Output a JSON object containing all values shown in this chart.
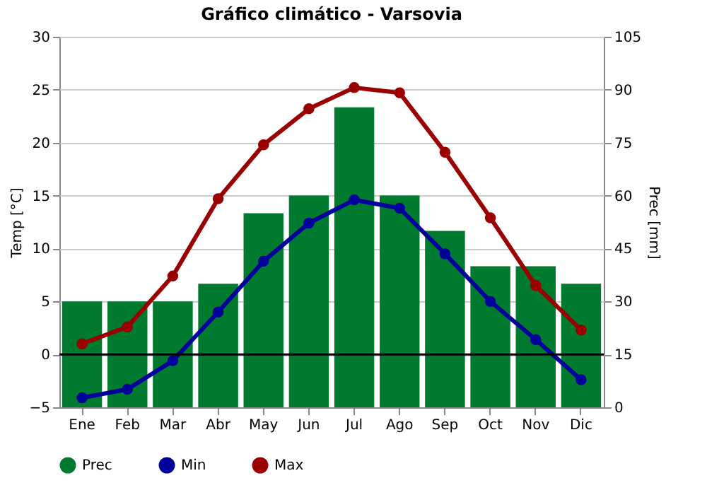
{
  "chart_data": {
    "type": "line",
    "title": "Gráfico climático - Varsovia",
    "ylabel": "Temp [°C]",
    "y2label": "Prec [mm]",
    "categories": [
      "Ene",
      "Feb",
      "Mar",
      "Abr",
      "May",
      "Jun",
      "Jul",
      "Ago",
      "Sep",
      "Oct",
      "Nov",
      "Dic"
    ],
    "series": [
      {
        "name": "Prec",
        "type": "bar",
        "axis": "y2",
        "color": "#007a2f",
        "values": [
          30,
          30,
          30,
          35,
          55,
          60,
          85,
          60,
          50,
          40,
          40,
          35
        ]
      },
      {
        "name": "Min",
        "color": "#00009b",
        "values": [
          -4.1,
          -3.3,
          -0.6,
          4.0,
          8.8,
          12.4,
          14.6,
          13.8,
          9.5,
          5.0,
          1.4,
          -2.4
        ]
      },
      {
        "name": "Max",
        "color": "#9b0000",
        "values": [
          1.0,
          2.6,
          7.4,
          14.7,
          19.8,
          23.2,
          25.2,
          24.7,
          19.1,
          12.9,
          6.5,
          2.3
        ]
      }
    ],
    "ylim": [
      -5,
      30
    ],
    "yticks": [
      -5,
      0,
      5,
      10,
      15,
      20,
      25,
      30
    ],
    "y2lim": [
      0,
      105
    ],
    "y2ticks": [
      0,
      15,
      30,
      45,
      60,
      75,
      90,
      105
    ],
    "ref_lines": [
      {
        "axis": "y",
        "value": 0
      }
    ],
    "grid": "y",
    "legend": "bottom",
    "marker": "circle",
    "line_style": "solid"
  }
}
